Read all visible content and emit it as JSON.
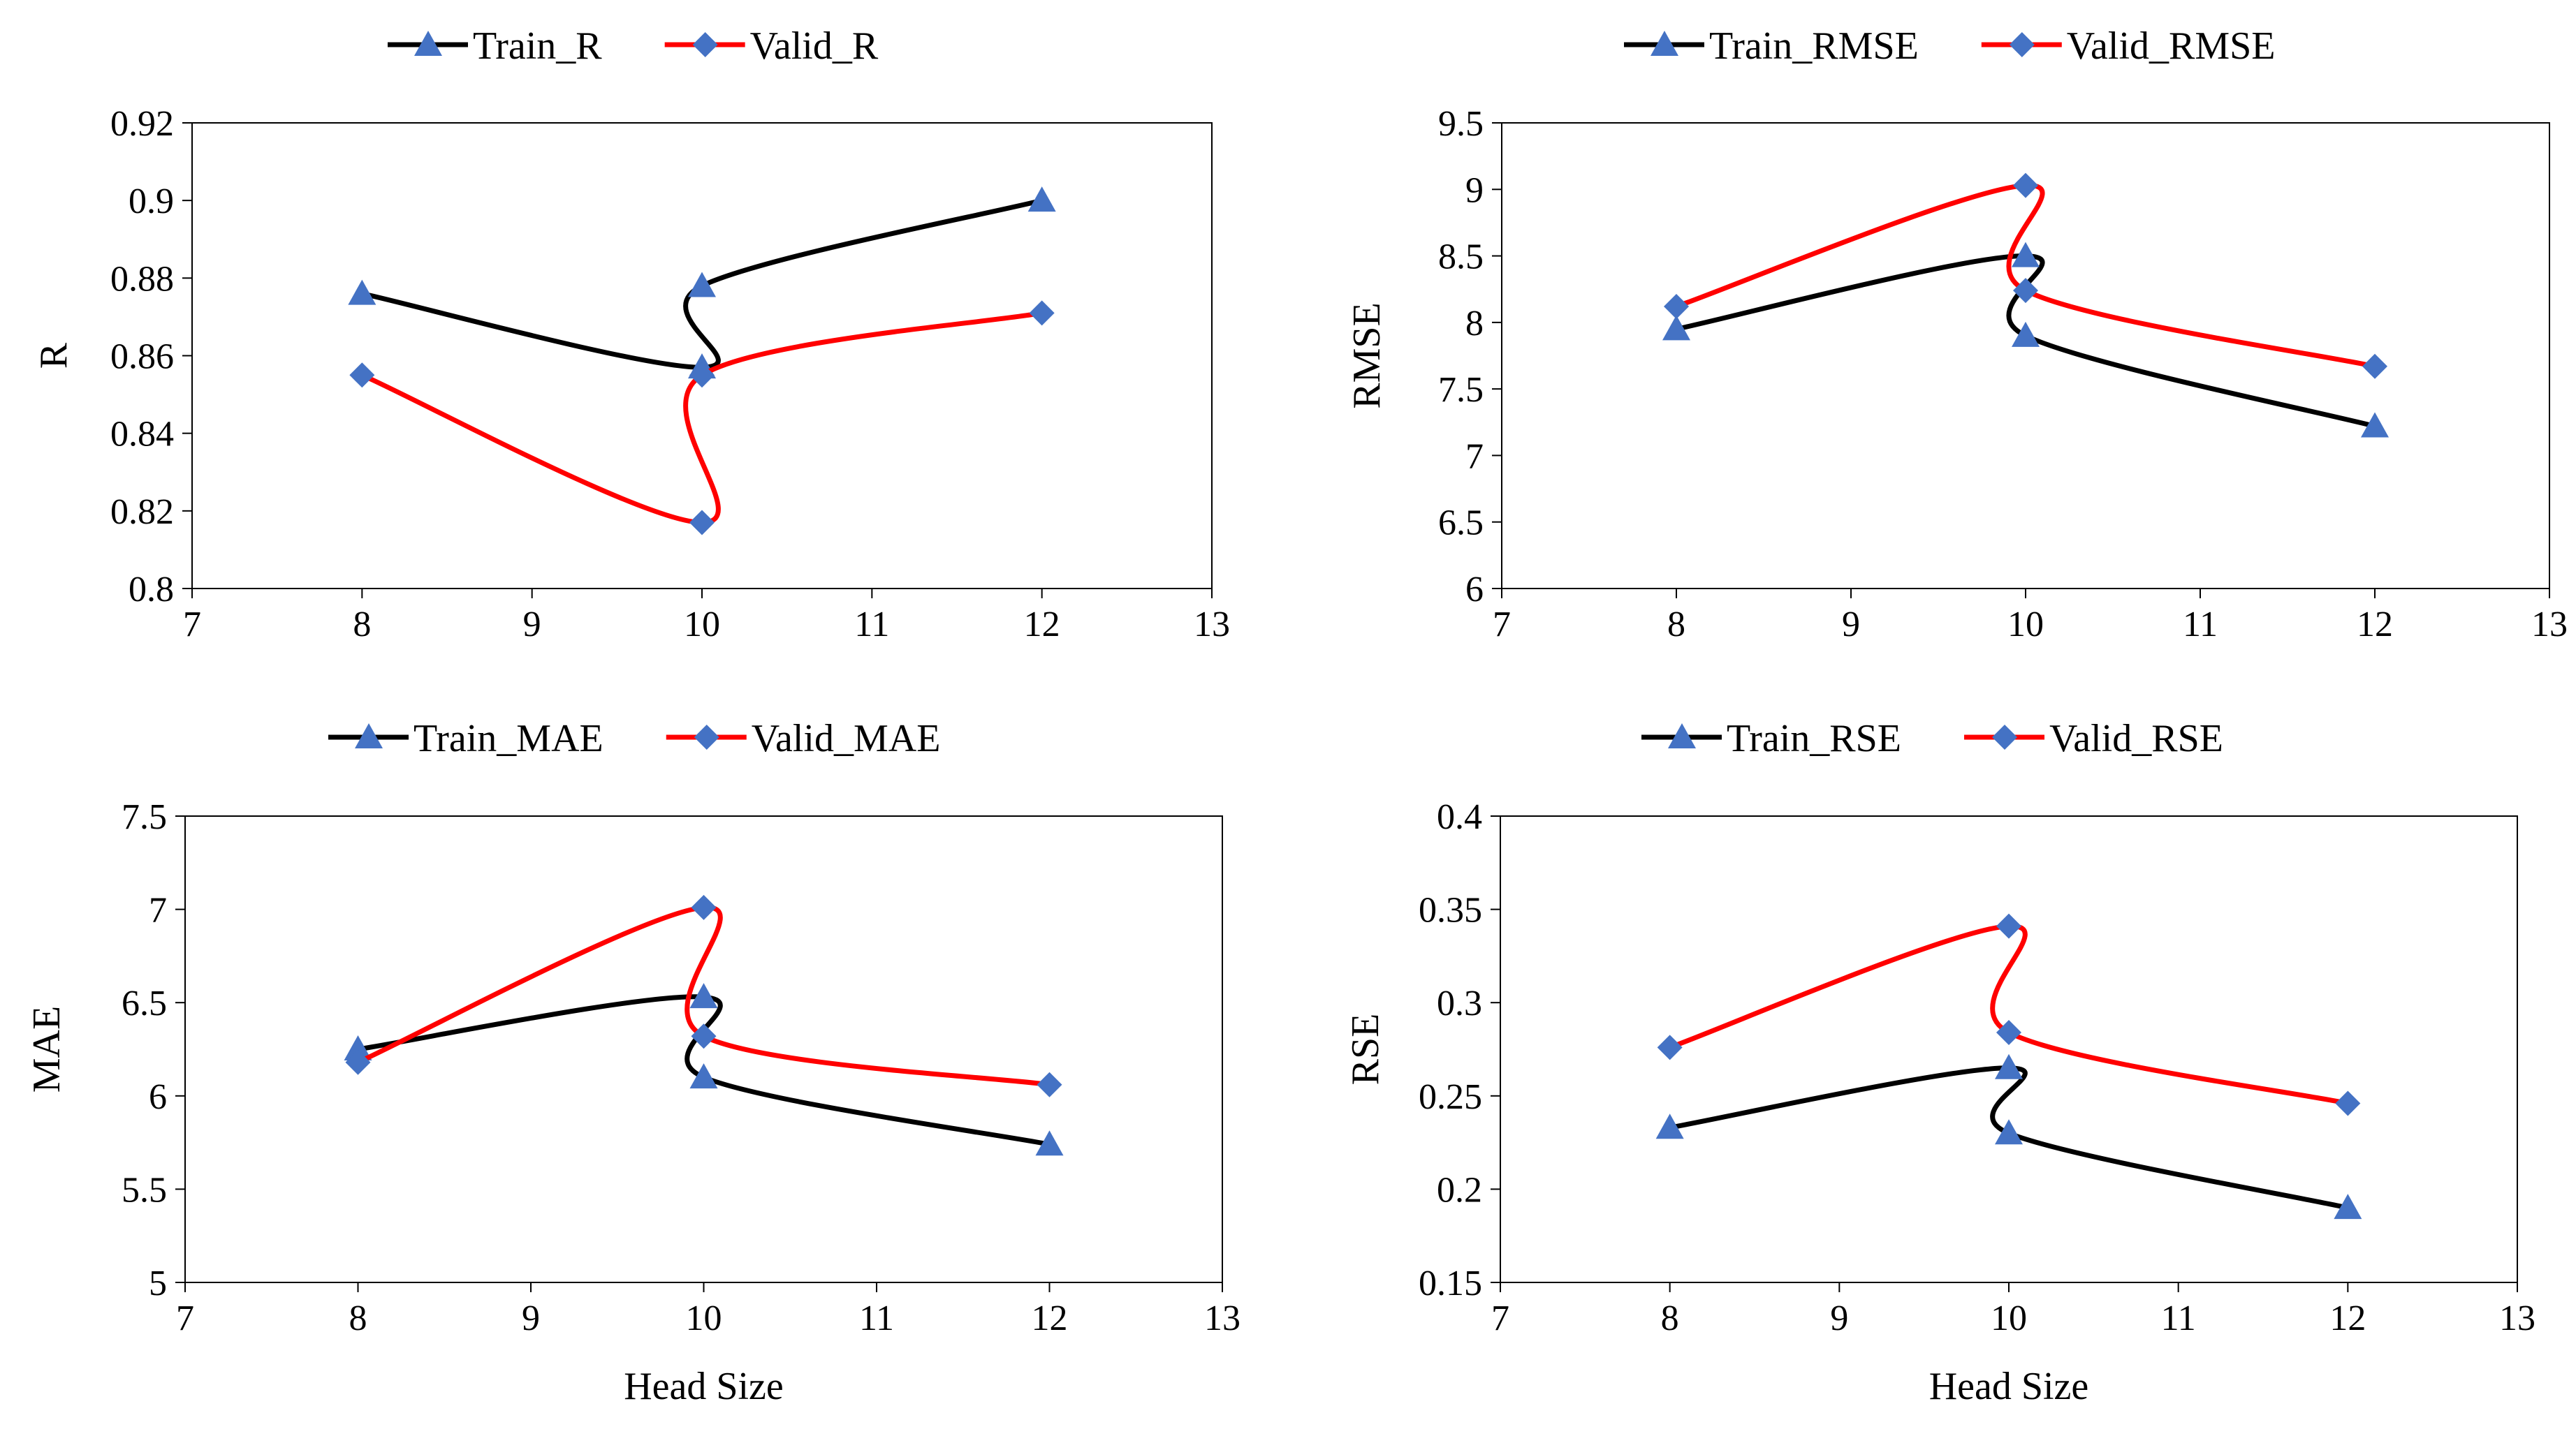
{
  "colors": {
    "train_line": "#000000",
    "valid_line": "#ff0000",
    "marker": "#4472c4",
    "axis": "#000000"
  },
  "chart_data": [
    {
      "id": "r",
      "type": "line",
      "title": "",
      "xlabel": "",
      "ylabel": "R",
      "xlim": [
        7,
        13
      ],
      "xticks": [
        7,
        8,
        9,
        10,
        11,
        12,
        13
      ],
      "ylim": [
        0.8,
        0.92
      ],
      "yticks": [
        "0.8",
        "0.82",
        "0.84",
        "0.86",
        "0.88",
        "0.9",
        "0.92"
      ],
      "legend_position": "top",
      "grid": false,
      "series": [
        {
          "name": "Train_R",
          "marker": "triangle",
          "x": [
            8,
            10,
            10,
            12
          ],
          "y": [
            0.876,
            0.857,
            0.878,
            0.9
          ]
        },
        {
          "name": "Valid_R",
          "marker": "diamond",
          "x": [
            8,
            10,
            10,
            12
          ],
          "y": [
            0.855,
            0.817,
            0.855,
            0.871
          ]
        }
      ]
    },
    {
      "id": "rmse",
      "type": "line",
      "title": "",
      "xlabel": "",
      "ylabel": "RMSE",
      "xlim": [
        7,
        13
      ],
      "xticks": [
        7,
        8,
        9,
        10,
        11,
        12,
        13
      ],
      "ylim": [
        6,
        9.5
      ],
      "yticks": [
        "6",
        "6.5",
        "7",
        "7.5",
        "8",
        "8.5",
        "9",
        "9.5"
      ],
      "legend_position": "top",
      "grid": false,
      "series": [
        {
          "name": "Train_RMSE",
          "marker": "triangle",
          "x": [
            8,
            10,
            10,
            12
          ],
          "y": [
            7.95,
            8.5,
            7.9,
            7.22
          ]
        },
        {
          "name": "Valid_RMSE",
          "marker": "diamond",
          "x": [
            8,
            10,
            10,
            12
          ],
          "y": [
            8.12,
            9.03,
            8.24,
            7.67
          ]
        }
      ]
    },
    {
      "id": "mae",
      "type": "line",
      "title": "",
      "xlabel": "Head Size",
      "ylabel": "MAE",
      "xlim": [
        7,
        13
      ],
      "xticks": [
        7,
        8,
        9,
        10,
        11,
        12,
        13
      ],
      "ylim": [
        5,
        7.5
      ],
      "yticks": [
        "5",
        "5.5",
        "6",
        "6.5",
        "7",
        "7.5"
      ],
      "legend_position": "top",
      "grid": false,
      "series": [
        {
          "name": "Train_MAE",
          "marker": "triangle",
          "x": [
            8,
            10,
            10,
            12
          ],
          "y": [
            6.25,
            6.53,
            6.1,
            5.74
          ]
        },
        {
          "name": "Valid_MAE",
          "marker": "diamond",
          "x": [
            8,
            10,
            10,
            12
          ],
          "y": [
            6.18,
            7.01,
            6.32,
            6.06
          ]
        }
      ]
    },
    {
      "id": "rse",
      "type": "line",
      "title": "",
      "xlabel": "Head Size",
      "ylabel": "RSE",
      "xlim": [
        7,
        13
      ],
      "xticks": [
        7,
        8,
        9,
        10,
        11,
        12,
        13
      ],
      "ylim": [
        0.15,
        0.4
      ],
      "yticks": [
        "0.15",
        "0.2",
        "0.25",
        "0.3",
        "0.35",
        "0.4"
      ],
      "legend_position": "top",
      "grid": false,
      "series": [
        {
          "name": "Train_RSE",
          "marker": "triangle",
          "x": [
            8,
            10,
            10,
            12
          ],
          "y": [
            0.233,
            0.265,
            0.23,
            0.19
          ]
        },
        {
          "name": "Valid_RSE",
          "marker": "diamond",
          "x": [
            8,
            10,
            10,
            12
          ],
          "y": [
            0.276,
            0.341,
            0.284,
            0.246
          ]
        }
      ]
    }
  ]
}
